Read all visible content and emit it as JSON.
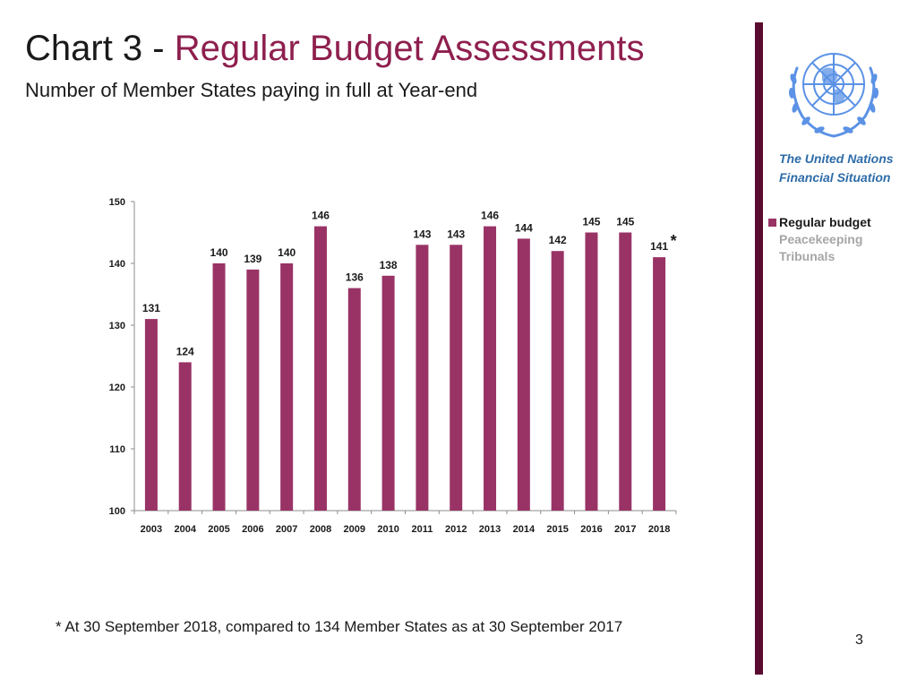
{
  "slide": {
    "title_prefix": "Chart 3 - ",
    "title_accent": "Regular Budget Assessments",
    "subtitle": "Number of Member States paying in full at Year-end",
    "sidebar_caption_line1": "The United Nations",
    "sidebar_caption_line2": "Financial Situation",
    "footnote": "* At 30 September 2018, compared to 134 Member States as at 30 September 2017",
    "page_number": "3"
  },
  "colors": {
    "accent": "#8e1f4e",
    "bar": "#993366",
    "divider": "#5a0b30",
    "caption": "#2e6ca8",
    "legend_muted": "#a6a6a6",
    "logo": "#5b92e5"
  },
  "chart_data": {
    "type": "bar",
    "title": "Number of Member States paying in full at Year-end",
    "xlabel": "",
    "ylabel": "",
    "ylim": [
      100,
      150
    ],
    "yticks": [
      100,
      110,
      120,
      130,
      140,
      150
    ],
    "grid": false,
    "categories": [
      "2003",
      "2004",
      "2005",
      "2006",
      "2007",
      "2008",
      "2009",
      "2010",
      "2011",
      "2012",
      "2013",
      "2014",
      "2015",
      "2016",
      "2017",
      "2018"
    ],
    "series": [
      {
        "name": "Regular budget",
        "values": [
          131,
          124,
          140,
          139,
          140,
          146,
          136,
          138,
          143,
          143,
          146,
          144,
          142,
          145,
          145,
          141
        ]
      }
    ],
    "annotations": [
      {
        "category": "2018",
        "text": "*"
      }
    ],
    "legend": {
      "placement": "right",
      "entries": [
        {
          "label": "Regular budget",
          "active": true
        },
        {
          "label": "Peacekeeping",
          "active": false
        },
        {
          "label": "Tribunals",
          "active": false
        }
      ]
    }
  }
}
